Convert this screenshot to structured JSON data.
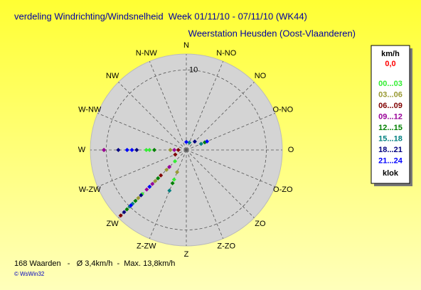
{
  "chart_data": {
    "type": "polar-scatter",
    "title": "verdeling Windrichting/Windsnelheid  Week 01/11/10 - 07/11/10 (WK44)",
    "subtitle": "Weerstation Heusden (Oost-Vlaanderen)",
    "directions": [
      "N",
      "N-NO",
      "NO",
      "O-NO",
      "O",
      "O-ZO",
      "ZO",
      "Z-ZO",
      "Z",
      "Z-ZW",
      "ZW",
      "W-ZW",
      "W",
      "W-NW",
      "NW",
      "N-NW"
    ],
    "rlim": [
      0,
      12
    ],
    "rticks": [
      10
    ],
    "legend_title": "km/h",
    "calm_label": "0,0",
    "calm_color": "#ff0000",
    "legend_footer": "klok",
    "series": [
      {
        "name": "00...03",
        "color": "#33ee33",
        "direction": [
          270,
          270,
          225,
          225,
          202.5,
          225
        ],
        "speed": [
          5.0,
          4.6,
          6.5,
          7.8,
          4.0,
          2.0
        ]
      },
      {
        "name": "03...06",
        "color": "#999933",
        "direction": [
          225,
          225,
          202.5,
          270,
          225
        ],
        "speed": [
          3.5,
          5.5,
          3.0,
          2.0,
          8.5
        ]
      },
      {
        "name": "06...09",
        "color": "#800000",
        "direction": [
          270,
          225,
          225,
          247.5,
          270
        ],
        "speed": [
          10.3,
          11.6,
          4.5,
          1.5,
          1.0
        ]
      },
      {
        "name": "09...12",
        "color": "#990099",
        "direction": [
          270,
          225,
          225,
          225,
          270
        ],
        "speed": [
          10.3,
          7.0,
          6.0,
          3.0,
          1.5
        ]
      },
      {
        "name": "12...15",
        "color": "#008000",
        "direction": [
          225,
          225,
          67.5,
          225,
          270,
          202.5
        ],
        "speed": [
          9.0,
          10.5,
          2.5,
          5.0,
          4.0,
          4.5
        ]
      },
      {
        "name": "15...18",
        "color": "#008080",
        "direction": [
          270,
          225,
          225,
          67.5,
          202.5,
          22.5
        ],
        "speed": [
          7.4,
          9.5,
          10.0,
          2.0,
          5.5,
          1.0
        ]
      },
      {
        "name": "18...21",
        "color": "#000080",
        "direction": [
          270,
          270,
          225,
          225,
          45
        ],
        "speed": [
          6.2,
          8.5,
          8.0,
          11.0,
          1.5
        ]
      },
      {
        "name": "21...24",
        "color": "#0000ff",
        "direction": [
          270,
          270,
          225,
          225,
          67.5,
          0
        ],
        "speed": [
          7.4,
          6.8,
          9.8,
          6.5,
          2.8,
          1.0
        ]
      }
    ],
    "footer": "168 Waarden   -   Ø 3,4km/h  -  Max. 13,8km/h",
    "copyright": "© WsWin32"
  }
}
